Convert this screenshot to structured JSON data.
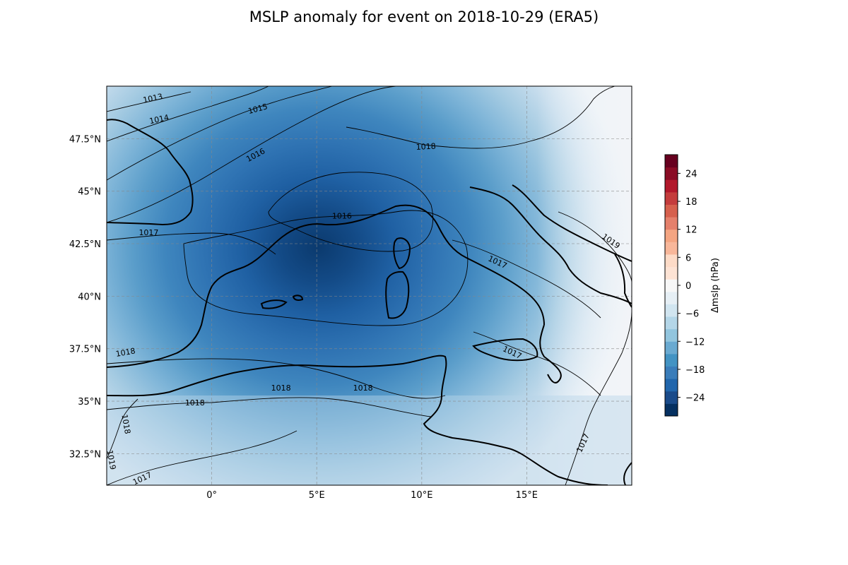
{
  "title": "MSLP anomaly for event on 2018-10-29 (ERA5)",
  "map": {
    "lon_range": [
      -5,
      20
    ],
    "lat_range": [
      31,
      50
    ],
    "xticks": [
      {
        "value": 0,
        "label": "0°"
      },
      {
        "value": 5,
        "label": "5°E"
      },
      {
        "value": 10,
        "label": "10°E"
      },
      {
        "value": 15,
        "label": "15°E"
      }
    ],
    "yticks": [
      {
        "value": 47.5,
        "label": "47.5°N"
      },
      {
        "value": 45,
        "label": "45°N"
      },
      {
        "value": 42.5,
        "label": "42.5°N"
      },
      {
        "value": 40,
        "label": "40°N"
      },
      {
        "value": 37.5,
        "label": "37.5°N"
      },
      {
        "value": 35,
        "label": "35°N"
      },
      {
        "value": 32.5,
        "label": "32.5°N"
      }
    ],
    "gridlines": true,
    "contour_labels": [
      {
        "text": "1013",
        "lon": -2.8,
        "lat": 49.4,
        "angle": -12
      },
      {
        "text": "1014",
        "lon": -2.5,
        "lat": 48.4,
        "angle": -12
      },
      {
        "text": "1015",
        "lon": 2.2,
        "lat": 48.9,
        "angle": -15
      },
      {
        "text": "1016",
        "lon": 2.1,
        "lat": 46.7,
        "angle": -28
      },
      {
        "text": "1018",
        "lon": 10.2,
        "lat": 47.1,
        "angle": -3
      },
      {
        "text": "1016",
        "lon": 6.2,
        "lat": 43.8,
        "angle": 0
      },
      {
        "text": "1017",
        "lon": -3.0,
        "lat": 43.0,
        "angle": 0
      },
      {
        "text": "1019",
        "lon": 19.0,
        "lat": 42.6,
        "angle": 35
      },
      {
        "text": "1017",
        "lon": 13.6,
        "lat": 41.6,
        "angle": 25
      },
      {
        "text": "1017",
        "lon": 14.3,
        "lat": 37.3,
        "angle": 25
      },
      {
        "text": "1018",
        "lon": -4.1,
        "lat": 37.3,
        "angle": -10
      },
      {
        "text": "1018",
        "lon": 3.3,
        "lat": 35.6,
        "angle": 0
      },
      {
        "text": "1018",
        "lon": 7.2,
        "lat": 35.6,
        "angle": 0
      },
      {
        "text": "1018",
        "lon": -0.8,
        "lat": 34.9,
        "angle": 0
      },
      {
        "text": "1018",
        "lon": -4.1,
        "lat": 33.9,
        "angle": 80
      },
      {
        "text": "1019",
        "lon": -4.8,
        "lat": 32.2,
        "angle": 80
      },
      {
        "text": "1017",
        "lon": -3.3,
        "lat": 31.3,
        "angle": -25
      },
      {
        "text": "1017",
        "lon": 17.7,
        "lat": 33.0,
        "angle": -65
      }
    ]
  },
  "colorbar": {
    "label": "Δmslp (hPa)",
    "ticks": [
      "24",
      "18",
      "12",
      "6",
      "0",
      "−6",
      "−12",
      "−18",
      "−24"
    ],
    "tick_values": [
      24,
      18,
      12,
      6,
      0,
      -6,
      -12,
      -18,
      -24
    ],
    "range": [
      -28,
      28
    ],
    "colors": [
      "#053061",
      "#1a4b8a",
      "#2166ac",
      "#3a7dba",
      "#4393c3",
      "#6aaad1",
      "#92c5de",
      "#b4d6e8",
      "#d1e5f0",
      "#e6eff5",
      "#f7f7f7",
      "#fde3d4",
      "#fddbc7",
      "#f8b79a",
      "#f4a582",
      "#e5806b",
      "#d6604d",
      "#c43c3c",
      "#b2182b",
      "#8a0c25",
      "#67001f"
    ]
  }
}
